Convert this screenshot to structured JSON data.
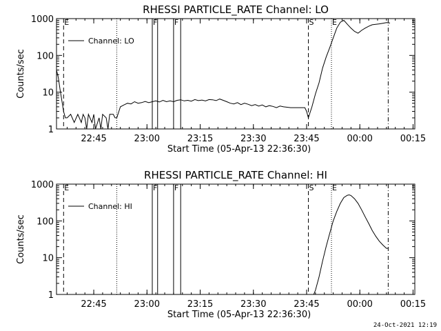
{
  "chart_data": [
    {
      "type": "line",
      "title": "RHESSI PARTICLE_RATE Channel: LO",
      "xlabel": "Start Time (05-Apr-13 22:36:30)",
      "ylabel": "Counts/sec",
      "yscale": "log",
      "xlim": [
        -2,
        99
      ],
      "ylim": [
        1,
        1000
      ],
      "x_units": "minutes after 22:36:30",
      "xticks": [
        {
          "x": 8.5,
          "label": "22:45"
        },
        {
          "x": 23.5,
          "label": "23:00"
        },
        {
          "x": 38.5,
          "label": "23:15"
        },
        {
          "x": 53.5,
          "label": "23:30"
        },
        {
          "x": 68.5,
          "label": "23:45"
        },
        {
          "x": 83.5,
          "label": "00:00"
        },
        {
          "x": 98.5,
          "label": "00:15"
        }
      ],
      "yticks": [
        {
          "y": 1,
          "label": "1"
        },
        {
          "y": 10,
          "label": "10"
        },
        {
          "y": 100,
          "label": "100"
        },
        {
          "y": 1000,
          "label": "1000"
        }
      ],
      "legend": {
        "label": "Channel: LO",
        "position": "top-left"
      },
      "markers": [
        {
          "x": 0,
          "label": "E",
          "style": "dashed"
        },
        {
          "x": 15,
          "label": "",
          "style": "dotted"
        },
        {
          "x": 25,
          "label": "F",
          "style": "solid"
        },
        {
          "x": 26.5,
          "label": "",
          "style": "solid"
        },
        {
          "x": 31,
          "label": "F",
          "style": "solid"
        },
        {
          "x": 33,
          "label": "",
          "style": "solid"
        },
        {
          "x": 69,
          "label": "S",
          "style": "dashed"
        },
        {
          "x": 75.5,
          "label": "E",
          "style": "dotted"
        },
        {
          "x": 91.5,
          "label": "",
          "style": "dashdot"
        }
      ],
      "series": [
        {
          "x": [
            -2,
            -1.5,
            -1,
            -0.5,
            0,
            0.5,
            1,
            2,
            3,
            4,
            5,
            5.5,
            6,
            6.5,
            7,
            8,
            8.5,
            9,
            10,
            10.5,
            11,
            12,
            12.5,
            13,
            14,
            14.5,
            15,
            16,
            17,
            18,
            19,
            20,
            21,
            22,
            23,
            24,
            25,
            26,
            27,
            28,
            29,
            30,
            31,
            32,
            33,
            34,
            35,
            36,
            37,
            38,
            39,
            40,
            41,
            42,
            43,
            44,
            45,
            46,
            47,
            48,
            49,
            50,
            51,
            52,
            53,
            54,
            55,
            56,
            57,
            58,
            59,
            60,
            61,
            62,
            63,
            64,
            65,
            66,
            67,
            68,
            68.5,
            69,
            70,
            71,
            72,
            73,
            74,
            75,
            76,
            77,
            78,
            79,
            80,
            81,
            82,
            83,
            84,
            85,
            86,
            87,
            88,
            89,
            90,
            91,
            92
          ],
          "y": [
            40,
            25,
            12,
            6,
            3,
            2,
            2,
            2.5,
            1.5,
            2.5,
            1.5,
            2.5,
            2,
            1,
            2.5,
            1.5,
            2.5,
            1,
            2,
            1,
            2.5,
            2,
            1,
            2.5,
            2.5,
            2,
            2,
            4,
            4.5,
            5,
            4.8,
            5.5,
            5,
            5.2,
            5.6,
            5.2,
            5.5,
            5.8,
            5.4,
            6,
            5.5,
            5.8,
            5.5,
            6,
            6.2,
            5.8,
            6,
            5.7,
            6.3,
            5.9,
            6.1,
            5.8,
            6.3,
            6.2,
            5.9,
            6.5,
            6,
            5.5,
            5,
            4.8,
            5.2,
            4.6,
            5,
            4.7,
            4.3,
            4.6,
            4.2,
            4.5,
            4,
            4.3,
            4.1,
            3.8,
            4.2,
            4,
            3.9,
            3.8,
            3.8,
            3.8,
            3.8,
            3.8,
            3,
            2,
            4,
            9,
            18,
            45,
            90,
            160,
            300,
            550,
            800,
            900,
            700,
            550,
            450,
            400,
            480,
            550,
            620,
            680,
            700,
            720,
            750,
            780,
            760
          ]
        }
      ]
    },
    {
      "type": "line",
      "title": "RHESSI PARTICLE_RATE Channel: HI",
      "xlabel": "Start Time (05-Apr-13 22:36:30)",
      "ylabel": "Counts/sec",
      "yscale": "log",
      "xlim": [
        -2,
        99
      ],
      "ylim": [
        1,
        1000
      ],
      "x_units": "minutes after 22:36:30",
      "xticks": [
        {
          "x": 8.5,
          "label": "22:45"
        },
        {
          "x": 23.5,
          "label": "23:00"
        },
        {
          "x": 38.5,
          "label": "23:15"
        },
        {
          "x": 53.5,
          "label": "23:30"
        },
        {
          "x": 68.5,
          "label": "23:45"
        },
        {
          "x": 83.5,
          "label": "00:00"
        },
        {
          "x": 98.5,
          "label": "00:15"
        }
      ],
      "yticks": [
        {
          "y": 1,
          "label": "1"
        },
        {
          "y": 10,
          "label": "10"
        },
        {
          "y": 100,
          "label": "100"
        },
        {
          "y": 1000,
          "label": "1000"
        }
      ],
      "legend": {
        "label": "Channel: HI",
        "position": "top-left"
      },
      "markers": [
        {
          "x": 0,
          "label": "E",
          "style": "dashed"
        },
        {
          "x": 15,
          "label": "",
          "style": "dotted"
        },
        {
          "x": 25,
          "label": "F",
          "style": "solid"
        },
        {
          "x": 26.5,
          "label": "",
          "style": "solid"
        },
        {
          "x": 31,
          "label": "F",
          "style": "solid"
        },
        {
          "x": 33,
          "label": "",
          "style": "solid"
        },
        {
          "x": 69,
          "label": "S",
          "style": "dashed"
        },
        {
          "x": 75.5,
          "label": "E",
          "style": "dotted"
        },
        {
          "x": 91.5,
          "label": "",
          "style": "dashdot"
        }
      ],
      "series": [
        {
          "x": [
            70.5,
            71,
            72,
            73,
            74,
            75,
            76,
            77,
            78,
            79,
            80,
            80.5,
            81,
            82,
            83,
            84,
            85,
            86,
            87,
            88,
            89,
            90,
            91,
            91.5
          ],
          "y": [
            1,
            1.3,
            3,
            8,
            20,
            45,
            100,
            180,
            300,
            430,
            500,
            510,
            490,
            400,
            300,
            200,
            130,
            85,
            55,
            38,
            28,
            22,
            18,
            18
          ]
        }
      ]
    }
  ],
  "footer": {
    "timestamp": "24-Oct-2021 12:19"
  }
}
